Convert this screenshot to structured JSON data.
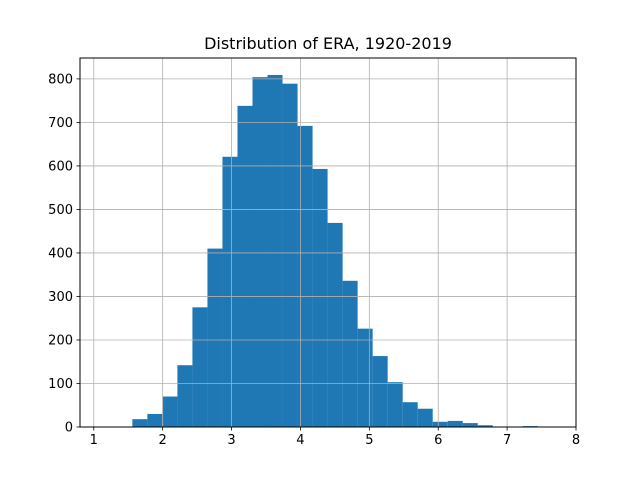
{
  "chart_data": {
    "type": "bar",
    "title": "Distribution of ERA, 1920-2019",
    "xlabel": "",
    "ylabel": "",
    "bin_start": 1.124,
    "bin_width": 0.218,
    "values": [
      0,
      0,
      18,
      30,
      70,
      142,
      275,
      410,
      621,
      738,
      804,
      809,
      789,
      692,
      593,
      469,
      336,
      226,
      163,
      103,
      57,
      42,
      12,
      14,
      9,
      4,
      0,
      0,
      2,
      0
    ],
    "xlim": [
      0.8,
      8.0
    ],
    "ylim": [
      0,
      848
    ],
    "xticks": [
      1,
      2,
      3,
      4,
      5,
      6,
      7,
      8
    ],
    "yticks": [
      0,
      100,
      200,
      300,
      400,
      500,
      600,
      700,
      800
    ],
    "grid": true,
    "bar_color": "#1f77b4",
    "grid_color": "#b0b0b0"
  }
}
